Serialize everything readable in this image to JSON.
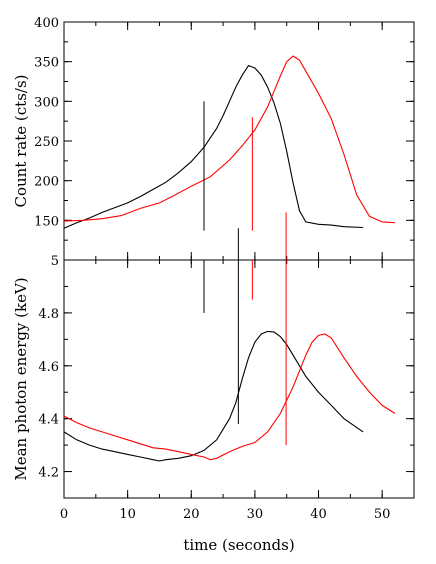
{
  "chart_data": [
    {
      "type": "line",
      "ylabel": "Count rate (cts/s)",
      "xlim": [
        0,
        55
      ],
      "ylim": [
        100,
        400
      ],
      "xticks": [
        0,
        10,
        20,
        30,
        40,
        50
      ],
      "xticks_labeled": false,
      "yticks": [
        150,
        200,
        250,
        300,
        350,
        400
      ],
      "grid": false,
      "series": [
        {
          "color": "#000000",
          "x": [
            0,
            2,
            4,
            6,
            8,
            10,
            12,
            14,
            16,
            18,
            20,
            22,
            24,
            25,
            26,
            27,
            28,
            29,
            30,
            31,
            32,
            33,
            34,
            35,
            36,
            37,
            38,
            40,
            42,
            44,
            47
          ],
          "y": [
            140,
            147,
            153,
            160,
            166,
            172,
            180,
            189,
            198,
            210,
            224,
            242,
            266,
            282,
            300,
            318,
            333,
            345,
            342,
            333,
            318,
            298,
            272,
            237,
            197,
            162,
            148,
            145,
            144,
            142,
            141
          ]
        },
        {
          "color": "#ff0000",
          "x": [
            0,
            3,
            6,
            9,
            12,
            15,
            17,
            20,
            23,
            26,
            28,
            30,
            32,
            34,
            35,
            36,
            37,
            38,
            40,
            42,
            44,
            46,
            48,
            50,
            52
          ],
          "y": [
            149,
            150,
            152,
            156,
            165,
            172,
            180,
            193,
            205,
            226,
            244,
            264,
            293,
            332,
            350,
            357,
            352,
            338,
            310,
            278,
            233,
            182,
            155,
            148,
            147
          ]
        }
      ],
      "vlines": [
        {
          "color": "#000000",
          "x": 22,
          "ymin": 137,
          "ymax": 300
        },
        {
          "color": "#ff0000",
          "x": 29.6,
          "ymin": 137,
          "ymax": 280
        }
      ]
    },
    {
      "type": "line",
      "xlabel": "time (seconds)",
      "ylabel": "Mean photon energy (keV)",
      "xlim": [
        0,
        55
      ],
      "ylim": [
        4.1,
        5.0
      ],
      "xticks": [
        0,
        10,
        20,
        30,
        40,
        50
      ],
      "yticks": [
        4.2,
        4.4,
        4.6,
        4.8,
        5
      ],
      "ytick_labels": [
        "4.2",
        "4.4",
        "4.6",
        "4.8",
        "5"
      ],
      "grid": false,
      "series": [
        {
          "color": "#000000",
          "x": [
            0,
            2,
            4,
            6,
            8,
            10,
            12,
            14,
            15,
            16,
            18,
            20,
            22,
            24,
            26,
            27,
            28,
            29,
            30,
            31,
            32,
            33,
            34,
            35,
            36,
            38,
            40,
            42,
            44,
            47
          ],
          "y": [
            4.35,
            4.32,
            4.3,
            4.285,
            4.275,
            4.265,
            4.255,
            4.245,
            4.24,
            4.245,
            4.25,
            4.26,
            4.28,
            4.32,
            4.4,
            4.46,
            4.55,
            4.63,
            4.69,
            4.72,
            4.73,
            4.728,
            4.71,
            4.68,
            4.64,
            4.56,
            4.5,
            4.45,
            4.4,
            4.35
          ]
        },
        {
          "color": "#ff0000",
          "x": [
            0,
            2,
            4,
            6,
            8,
            10,
            12,
            14,
            16,
            18,
            20,
            22,
            23,
            24,
            26,
            28,
            30,
            32,
            34,
            36,
            38,
            39,
            40,
            41,
            42,
            44,
            46,
            48,
            50,
            52
          ],
          "y": [
            4.41,
            4.385,
            4.365,
            4.35,
            4.335,
            4.32,
            4.305,
            4.29,
            4.285,
            4.275,
            4.265,
            4.255,
            4.245,
            4.25,
            4.275,
            4.295,
            4.31,
            4.35,
            4.42,
            4.52,
            4.64,
            4.69,
            4.715,
            4.72,
            4.705,
            4.63,
            4.56,
            4.5,
            4.45,
            4.42
          ]
        }
      ],
      "vlines": [
        {
          "color": "#000000",
          "x": 22,
          "ymin": 4.8,
          "ymax": 5.0
        },
        {
          "color": "#ff0000",
          "x": 29.6,
          "ymin": 4.85,
          "ymax": 5.0
        },
        {
          "color": "#000000",
          "x": 27.4,
          "ymin": 4.38,
          "ymax": 5.0
        },
        {
          "color": "#ff0000",
          "x": 34.9,
          "ymin": 4.3,
          "ymax": 5.0
        }
      ],
      "vlines_extend_above": [
        {
          "color": "#000000",
          "x": 27.4,
          "ymax_top_panel": 140
        },
        {
          "color": "#ff0000",
          "x": 34.9,
          "ymax_top_panel": 160
        }
      ]
    }
  ]
}
